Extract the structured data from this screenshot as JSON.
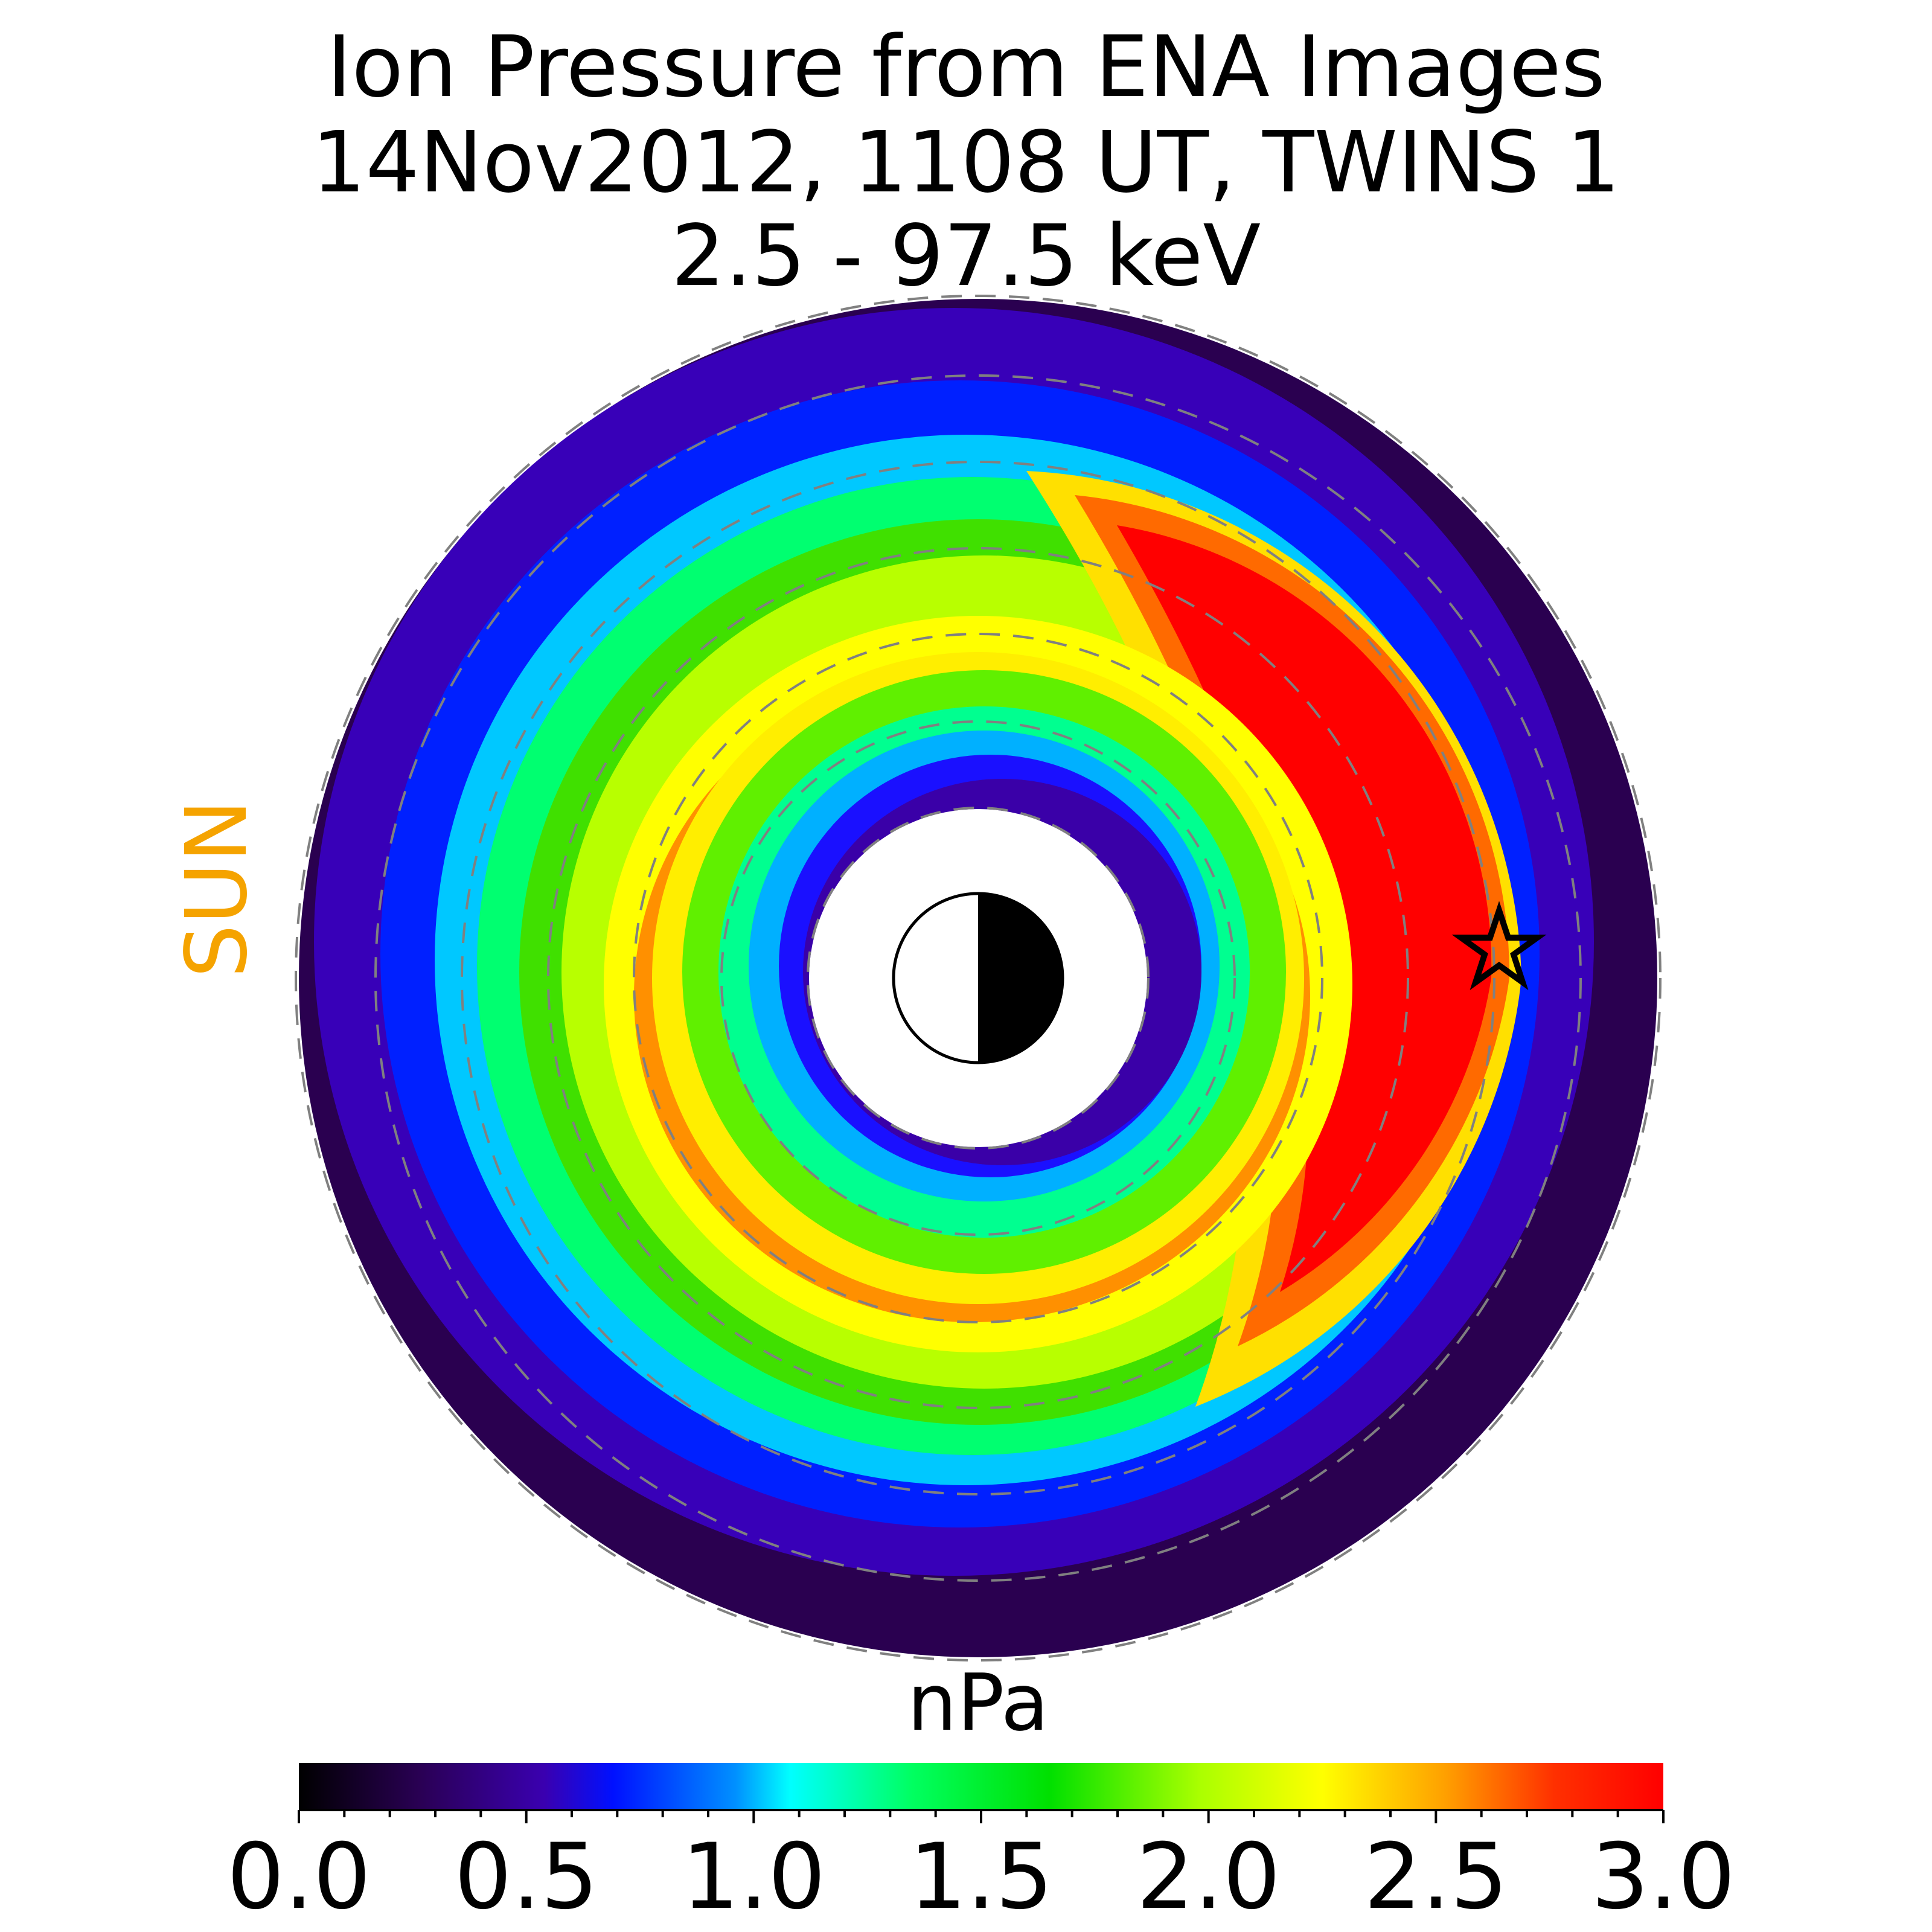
{
  "title": {
    "line1": "Ion Pressure from  ENA Images",
    "line2": "14Nov2012, 1108 UT,  TWINS 1",
    "line3": "2.5 - 97.5 keV"
  },
  "sun_label": "SUN",
  "colorbar": {
    "label": "nPa",
    "ticks": [
      "0.0",
      "0.5",
      "1.0",
      "1.5",
      "2.0",
      "2.5",
      "3.0"
    ],
    "range": [
      0.0,
      3.0
    ],
    "colormap": [
      "#000000",
      "#2a0055",
      "#3a00b0",
      "#0010ff",
      "#0090ff",
      "#00ffff",
      "#00ff60",
      "#00e000",
      "#aaff00",
      "#ffff00",
      "#ffa000",
      "#ff3000",
      "#ff0000"
    ]
  },
  "chart_data": {
    "type": "heatmap",
    "projection": "polar (equatorial plane, sun to the left)",
    "value_range": [
      0.0,
      3.0
    ],
    "units": "nPa",
    "features": {
      "main_ring_peak": 3.0,
      "main_ring_location": "dusk/night side (right), extending top-right to bottom",
      "secondary_ring_peak": 2.7,
      "secondary_ring_location": "bottom inner",
      "inner_ring_value": 0.4,
      "outer_edge_value": 0.2
    },
    "marker": "star",
    "grid": true,
    "dashed_circles": 7
  }
}
